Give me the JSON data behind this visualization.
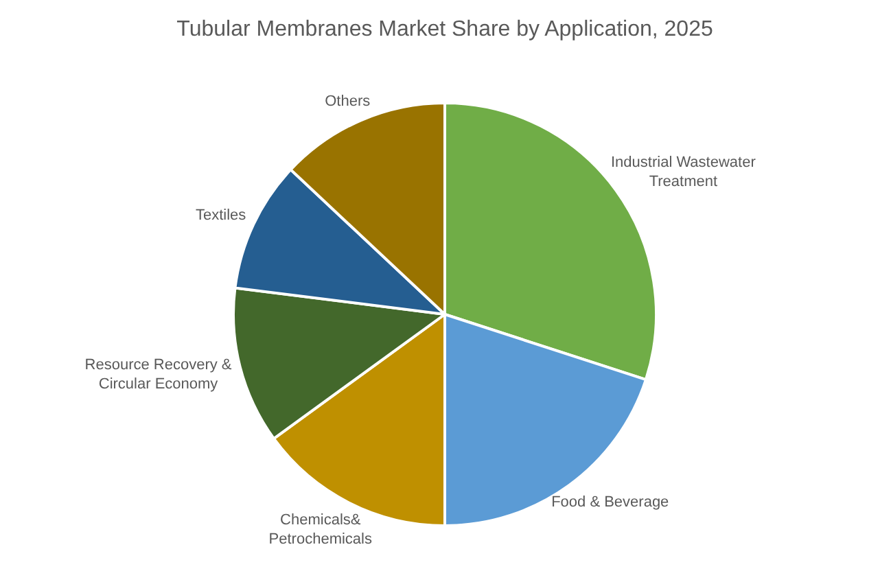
{
  "chart_data": {
    "type": "pie",
    "title": "Tubular Membranes Market Share by Application, 2025",
    "categories": [
      "Industrial Wastewater Treatment",
      "Food & Beverage",
      "Chemicals& Petrochemicals",
      "Resource Recovery & Circular Economy",
      "Textiles",
      "Others"
    ],
    "values": [
      30,
      20,
      15,
      12,
      10,
      13
    ],
    "colors": [
      "#70ad47",
      "#5b9bd5",
      "#bf9000",
      "#43682b",
      "#255e91",
      "#997300"
    ]
  }
}
